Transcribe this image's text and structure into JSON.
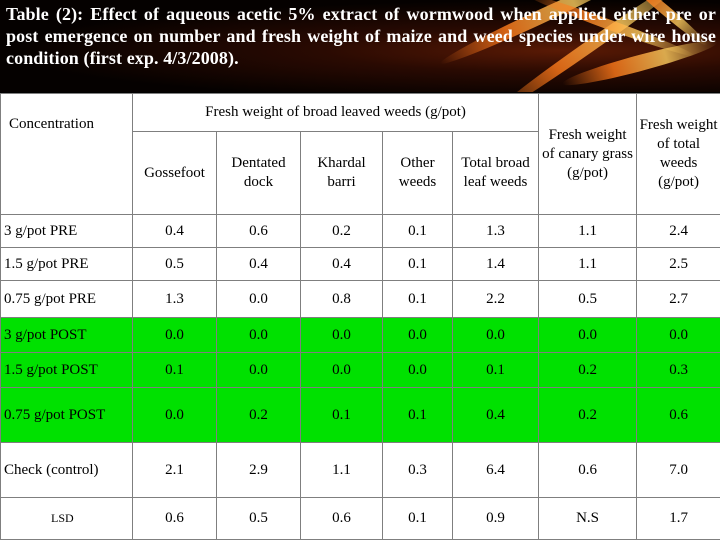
{
  "title": "Table (2): Effect of aqueous acetic 5% extract of wormwood when applied either pre or post emergence on number and fresh weight of maize and weed species under wire house condition (first exp. 4/3/2008).",
  "header": {
    "group_label": "Fresh weight of broad leaved weeds (g/pot)",
    "concentration": "Concentration",
    "columns": [
      "Gossefoot",
      "Dentated dock",
      "Khardal barri",
      "Other weeds",
      "Total broad leaf weeds"
    ],
    "canary": "Fresh weight of canary grass (g/pot)",
    "total": "Fresh weight of total weeds (g/pot)"
  },
  "rows": [
    {
      "label": "3 g/pot PRE",
      "values": [
        "0.4",
        "0.6",
        "0.2",
        "0.1",
        "1.3",
        "1.1",
        "2.4"
      ]
    },
    {
      "label": "1.5 g/pot PRE",
      "values": [
        "0.5",
        "0.4",
        "0.4",
        "0.1",
        "1.4",
        "1.1",
        "2.5"
      ]
    },
    {
      "label": "0.75 g/pot PRE",
      "values": [
        "1.3",
        "0.0",
        "0.8",
        "0.1",
        "2.2",
        "0.5",
        "2.7"
      ]
    },
    {
      "label": "3 g/pot POST",
      "values": [
        "0.0",
        "0.0",
        "0.0",
        "0.0",
        "0.0",
        "0.0",
        "0.0"
      ]
    },
    {
      "label": "1.5 g/pot POST",
      "values": [
        "0.1",
        "0.0",
        "0.0",
        "0.0",
        "0.1",
        "0.2",
        "0.3"
      ]
    },
    {
      "label": "0.75 g/pot POST",
      "values": [
        "0.0",
        "0.2",
        "0.1",
        "0.1",
        "0.4",
        "0.2",
        "0.6"
      ]
    },
    {
      "label": "Check (control)",
      "values": [
        "2.1",
        "2.9",
        "1.1",
        "0.3",
        "6.4",
        "0.6",
        "7.0"
      ]
    },
    {
      "label": "LSD",
      "values": [
        "0.6",
        "0.5",
        "0.6",
        "0.1",
        "0.9",
        "N.S",
        "1.7"
      ]
    }
  ]
}
